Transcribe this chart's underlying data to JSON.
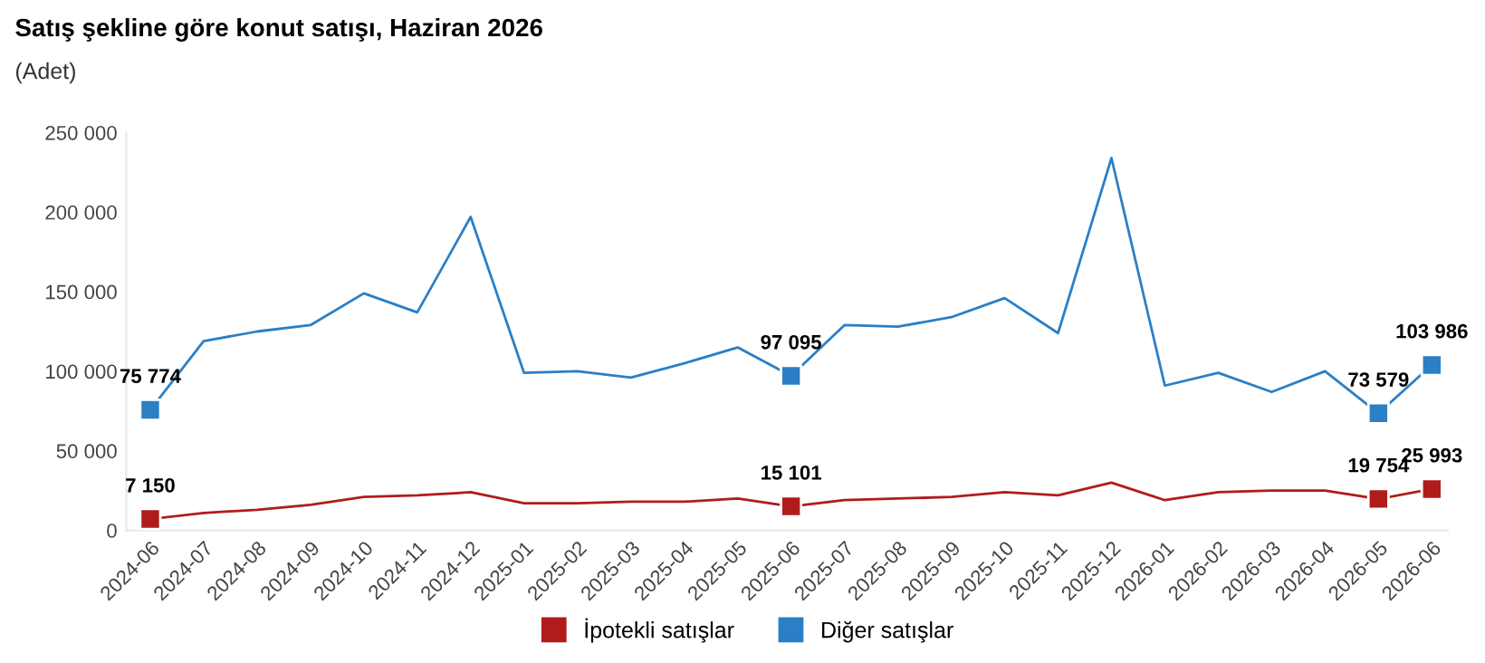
{
  "chart_data": {
    "type": "line",
    "title": "Satış şekline göre konut satışı, Haziran 2026",
    "subtitle": "(Adet)",
    "categories": [
      "2024-06",
      "2024-07",
      "2024-08",
      "2024-09",
      "2024-10",
      "2024-11",
      "2024-12",
      "2025-01",
      "2025-02",
      "2025-03",
      "2025-04",
      "2025-05",
      "2025-06",
      "2025-07",
      "2025-08",
      "2025-09",
      "2025-10",
      "2025-11",
      "2025-12",
      "2026-01",
      "2026-02",
      "2026-03",
      "2026-04",
      "2026-05",
      "2026-06"
    ],
    "series": [
      {
        "name": "İpotekli satışlar",
        "color": "#b01c1c",
        "values": [
          7150,
          11000,
          13000,
          16000,
          21000,
          22000,
          24000,
          17000,
          17000,
          18000,
          18000,
          20000,
          15101,
          19000,
          20000,
          21000,
          24000,
          22000,
          30000,
          19000,
          24000,
          25000,
          25000,
          19754,
          25993
        ],
        "value_labels": [
          "7 150",
          null,
          null,
          null,
          null,
          null,
          null,
          null,
          null,
          null,
          null,
          null,
          "15 101",
          null,
          null,
          null,
          null,
          null,
          null,
          null,
          null,
          null,
          null,
          "19 754",
          "25 993"
        ]
      },
      {
        "name": "Diğer satışlar",
        "color": "#2b7fc4",
        "values": [
          75774,
          119000,
          125000,
          129000,
          149000,
          137000,
          197000,
          99000,
          100000,
          96000,
          105000,
          115000,
          97095,
          129000,
          128000,
          134000,
          146000,
          124000,
          234000,
          91000,
          99000,
          87000,
          100000,
          73579,
          103986
        ],
        "value_labels": [
          "75 774",
          null,
          null,
          null,
          null,
          null,
          null,
          null,
          null,
          null,
          null,
          null,
          "97 095",
          null,
          null,
          null,
          null,
          null,
          null,
          null,
          null,
          null,
          null,
          "73 579",
          "103 986"
        ]
      }
    ],
    "ylim": [
      0,
      250000
    ],
    "yticks": [
      {
        "value": 0,
        "label": "0"
      },
      {
        "value": 50000,
        "label": "50 000"
      },
      {
        "value": 100000,
        "label": "100 000"
      },
      {
        "value": 150000,
        "label": "150 000"
      },
      {
        "value": 200000,
        "label": "200 000"
      },
      {
        "value": 250000,
        "label": "250 000"
      }
    ],
    "line_style": "solid",
    "grid": false,
    "legend": "bottom"
  }
}
